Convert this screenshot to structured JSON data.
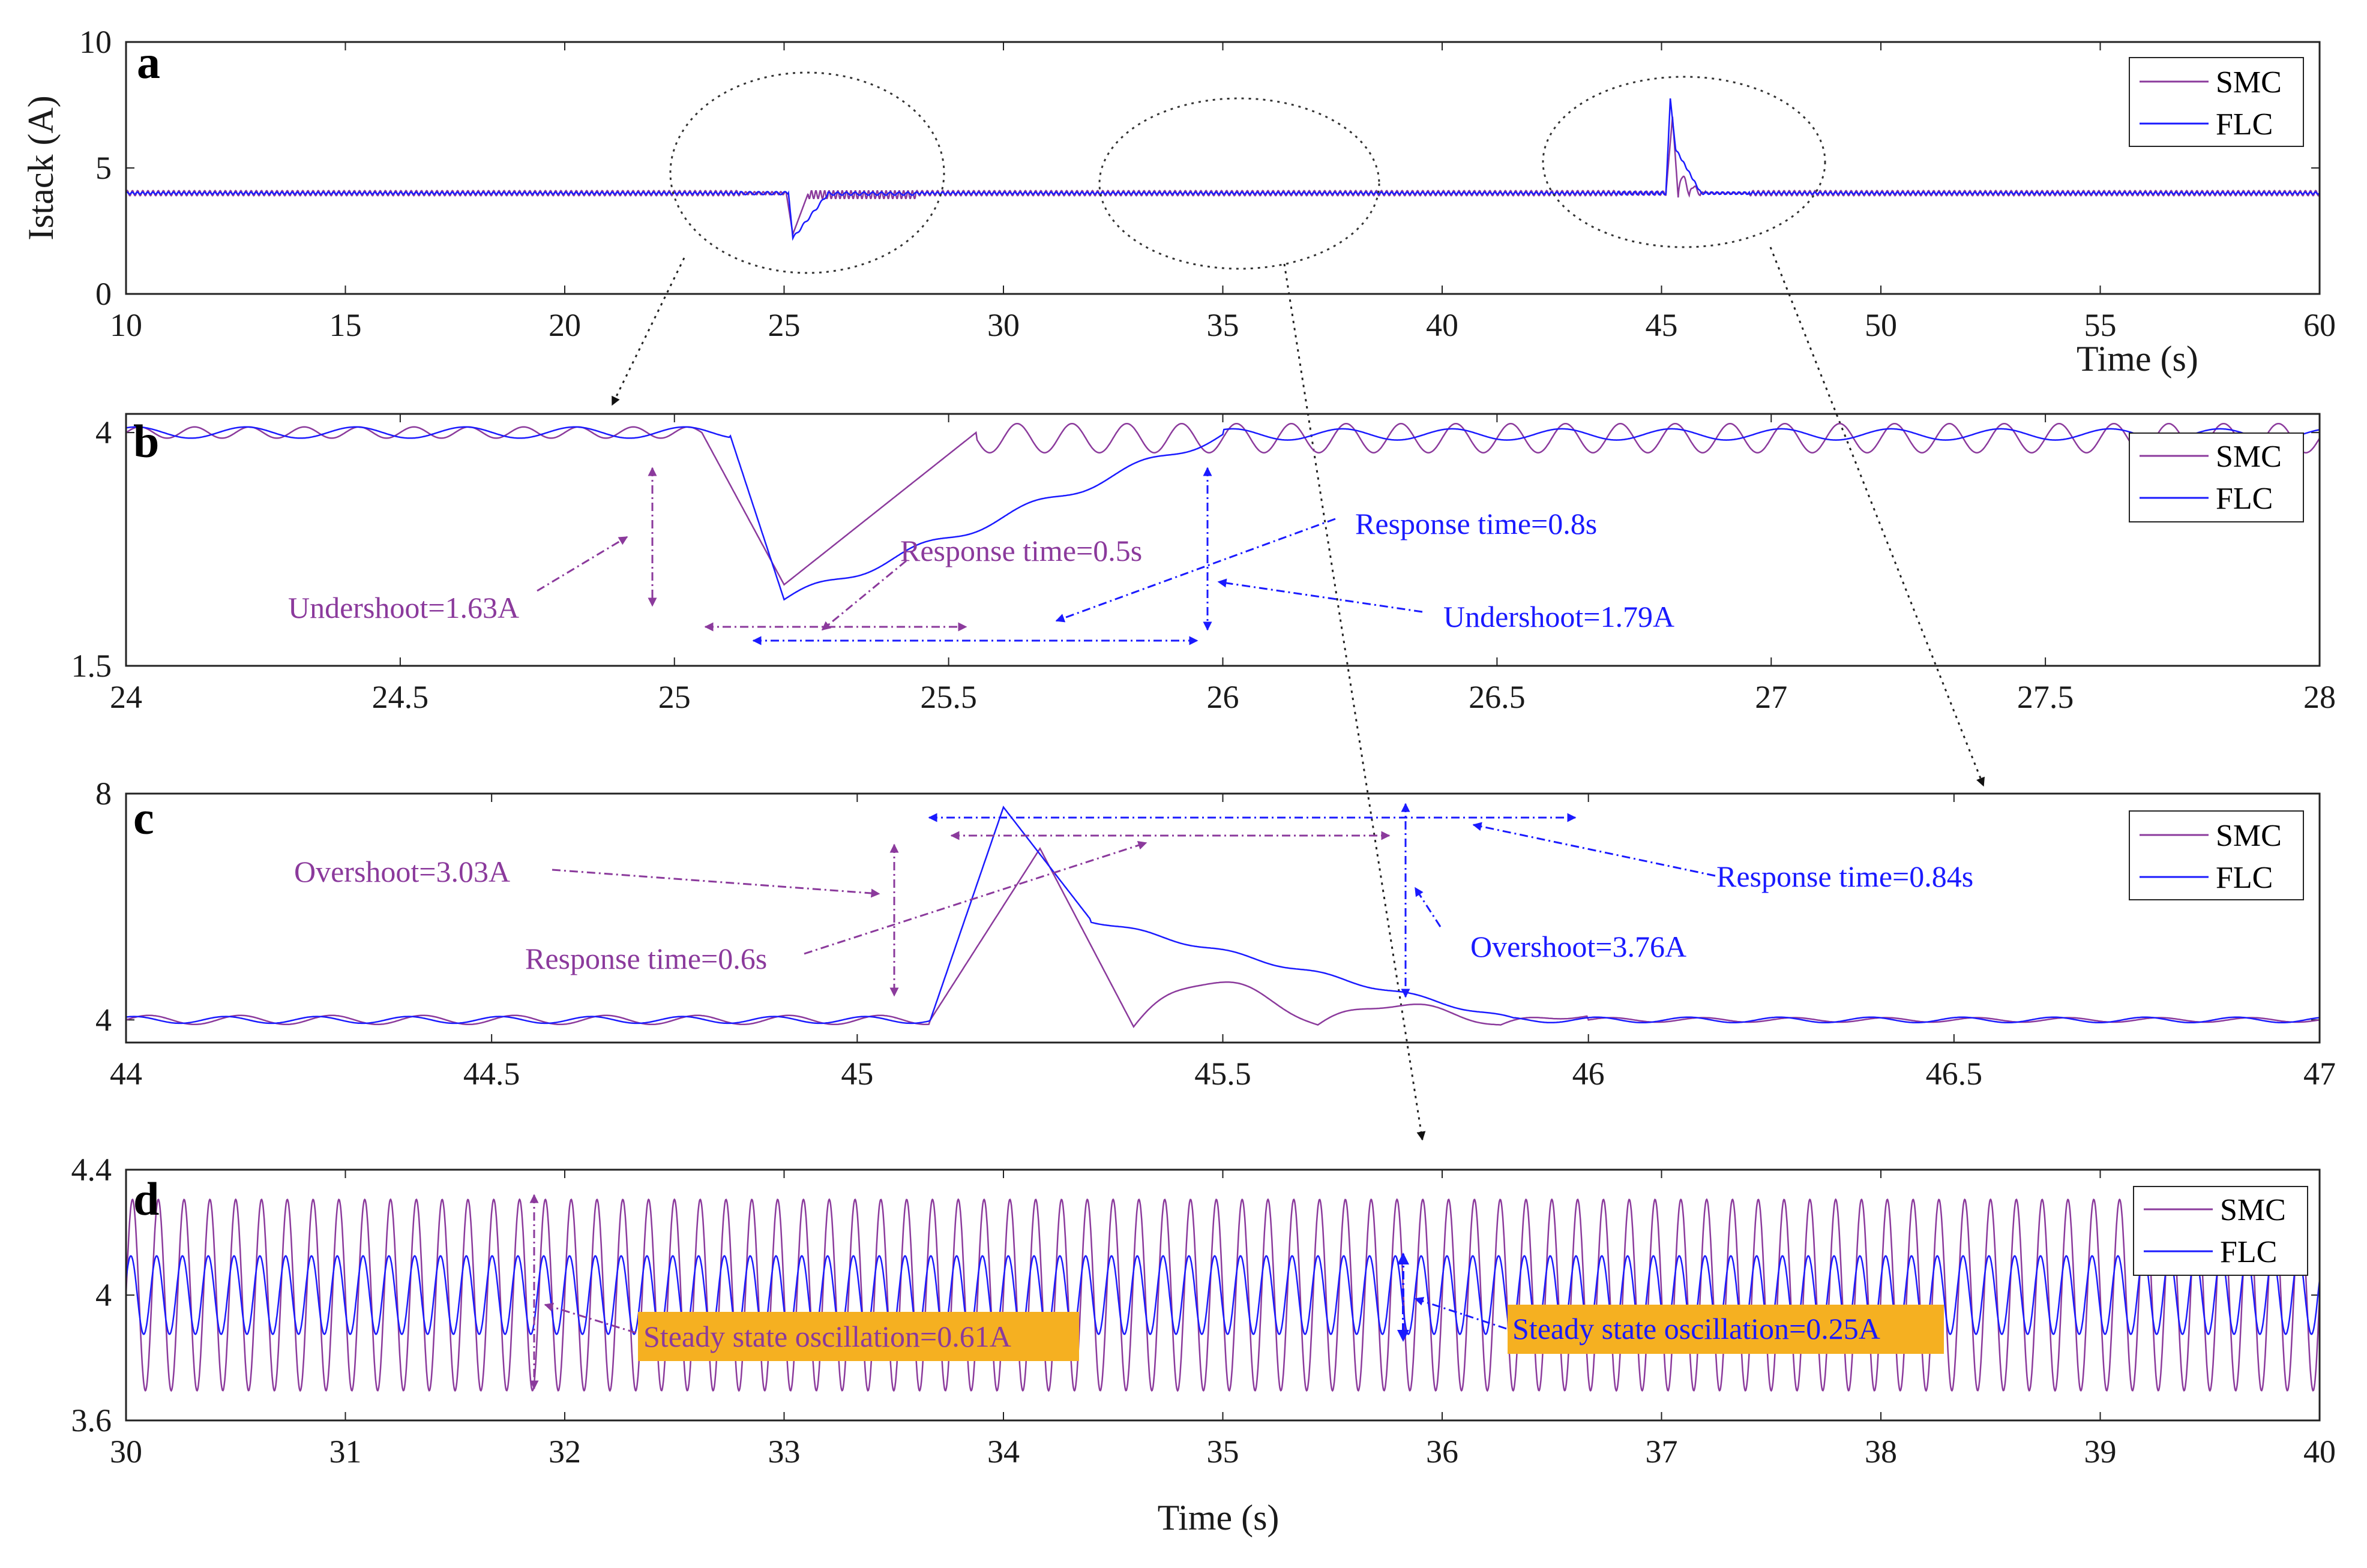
{
  "figure": {
    "colors": {
      "SMC": "#8b3a9c",
      "FLC": "#1a1aff",
      "annotation_bg": "#f5b021"
    },
    "xlabel_a": "Time (s)",
    "xlabel_d": "Time (s)",
    "ylabel_a": "Istack (A)",
    "legend": [
      "SMC",
      "FLC"
    ]
  },
  "chart_data": [
    {
      "type": "line",
      "panel": "a",
      "xlim": [
        10,
        60
      ],
      "ylim": [
        0,
        10
      ],
      "xticks": [
        "10",
        "15",
        "20",
        "25",
        "30",
        "35",
        "40",
        "45",
        "50",
        "55",
        "60"
      ],
      "yticks": [
        "0",
        "5",
        "10"
      ],
      "xlabel": "Time (s)",
      "ylabel": "Istack (A)",
      "series": [
        {
          "name": "SMC",
          "baseline": 4,
          "oscillation_amplitude": 0.3,
          "dip": {
            "t": 25.05,
            "min": 2.37
          },
          "peak": {
            "t": 45.2,
            "max": 7.03
          }
        },
        {
          "name": "FLC",
          "baseline": 4,
          "oscillation_amplitude": 0.12,
          "dip": {
            "t": 25.2,
            "min": 2.21
          },
          "peak": {
            "t": 45.2,
            "max": 7.76
          }
        }
      ]
    },
    {
      "type": "line",
      "panel": "b",
      "xlim": [
        24,
        28
      ],
      "ylim": [
        1.5,
        4.2
      ],
      "xticks": [
        "24",
        "24.5",
        "25",
        "25.5",
        "26",
        "26.5",
        "27",
        "27.5",
        "28"
      ],
      "yticks": [
        "1.5",
        "4"
      ],
      "annotations": [
        "Undershoot=1.63A",
        "Response time=0.5s",
        "Response time=0.8s",
        "Undershoot=1.79A"
      ]
    },
    {
      "type": "line",
      "panel": "c",
      "xlim": [
        44,
        47
      ],
      "ylim": [
        3.6,
        8
      ],
      "xticks": [
        "44",
        "44.5",
        "45",
        "45.5",
        "46",
        "46.5",
        "47"
      ],
      "yticks": [
        "4",
        "8"
      ],
      "annotations": [
        "Overshoot=3.03A",
        "Response time=0.6s",
        "Response time=0.84s",
        "Overshoot=3.76A"
      ]
    },
    {
      "type": "line",
      "panel": "d",
      "xlim": [
        30,
        40
      ],
      "ylim": [
        3.6,
        4.4
      ],
      "xticks": [
        "30",
        "31",
        "32",
        "33",
        "34",
        "35",
        "36",
        "37",
        "38",
        "39",
        "40"
      ],
      "yticks": [
        "3.6",
        "4",
        "4.4"
      ],
      "xlabel": "Time (s)",
      "annotations": [
        "Steady state oscillation=0.61A",
        "Steady state oscillation=0.25A"
      ]
    }
  ]
}
